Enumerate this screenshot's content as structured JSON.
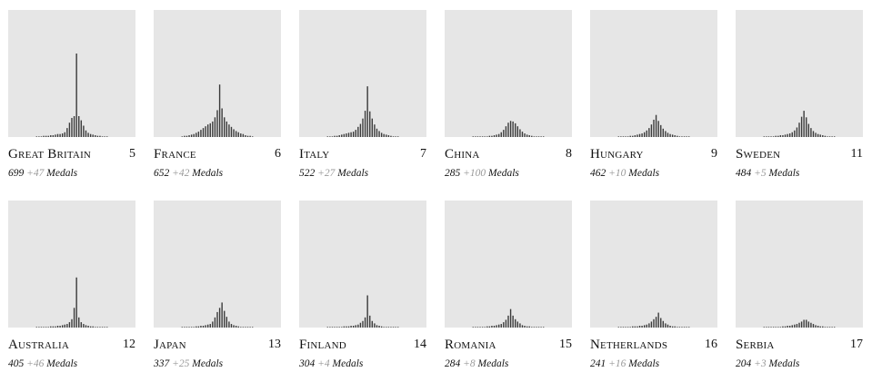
{
  "chart_data": [
    {
      "type": "bar",
      "country": "Great Britain",
      "rank": "5",
      "medals": "699",
      "extra": "+47",
      "medals_label": "Medals",
      "values": [
        1,
        1,
        1,
        2,
        2,
        2,
        3,
        3,
        4,
        5,
        5,
        6,
        8,
        15,
        24,
        32,
        35,
        140,
        35,
        28,
        19,
        11,
        7,
        5,
        4,
        3,
        2,
        2,
        1,
        1,
        1
      ]
    },
    {
      "type": "bar",
      "country": "France",
      "rank": "6",
      "medals": "652",
      "extra": "+42",
      "medals_label": "Medals",
      "values": [
        1,
        2,
        2,
        3,
        4,
        5,
        7,
        9,
        12,
        15,
        18,
        21,
        23,
        26,
        33,
        45,
        88,
        48,
        33,
        26,
        21,
        17,
        13,
        10,
        8,
        6,
        5,
        3,
        2,
        2,
        1
      ]
    },
    {
      "type": "bar",
      "country": "Italy",
      "rank": "7",
      "medals": "522",
      "extra": "+27",
      "medals_label": "Medals",
      "values": [
        1,
        1,
        1,
        2,
        2,
        3,
        4,
        5,
        6,
        7,
        8,
        9,
        12,
        17,
        22,
        31,
        44,
        85,
        43,
        31,
        21,
        14,
        10,
        7,
        5,
        4,
        3,
        2,
        1,
        1,
        1
      ]
    },
    {
      "type": "bar",
      "country": "China",
      "rank": "8",
      "medals": "285",
      "extra": "+100",
      "medals_label": "Medals",
      "values": [
        1,
        1,
        1,
        1,
        1,
        1,
        1,
        2,
        2,
        3,
        4,
        5,
        8,
        12,
        18,
        24,
        27,
        26,
        23,
        18,
        13,
        9,
        6,
        4,
        3,
        2,
        1,
        1,
        1,
        1,
        1
      ]
    },
    {
      "type": "bar",
      "country": "Hungary",
      "rank": "9",
      "medals": "462",
      "extra": "+10",
      "medals_label": "Medals",
      "values": [
        1,
        1,
        1,
        1,
        1,
        2,
        2,
        3,
        4,
        5,
        6,
        8,
        11,
        15,
        21,
        29,
        37,
        27,
        20,
        14,
        10,
        7,
        5,
        4,
        3,
        2,
        1,
        1,
        1,
        1,
        1
      ]
    },
    {
      "type": "bar",
      "country": "Sweden",
      "rank": "11",
      "medals": "484",
      "extra": "+5",
      "medals_label": "Medals",
      "values": [
        1,
        1,
        1,
        1,
        1,
        2,
        2,
        3,
        3,
        4,
        5,
        6,
        8,
        11,
        16,
        24,
        34,
        44,
        33,
        22,
        15,
        10,
        7,
        5,
        4,
        3,
        2,
        1,
        1,
        1,
        1
      ]
    },
    {
      "type": "bar",
      "country": "Australia",
      "rank": "12",
      "medals": "405",
      "extra": "+46",
      "medals_label": "Medals",
      "values": [
        1,
        1,
        1,
        1,
        1,
        1,
        2,
        2,
        2,
        3,
        3,
        4,
        5,
        6,
        9,
        14,
        33,
        84,
        17,
        9,
        6,
        4,
        3,
        2,
        2,
        1,
        1,
        1,
        1,
        1,
        1
      ]
    },
    {
      "type": "bar",
      "country": "Japan",
      "rank": "13",
      "medals": "337",
      "extra": "+25",
      "medals_label": "Medals",
      "values": [
        1,
        1,
        1,
        1,
        1,
        1,
        2,
        2,
        3,
        3,
        4,
        5,
        6,
        10,
        17,
        26,
        33,
        42,
        28,
        18,
        10,
        6,
        4,
        3,
        2,
        1,
        1,
        1,
        1,
        1,
        1
      ]
    },
    {
      "type": "bar",
      "country": "Finland",
      "rank": "14",
      "medals": "304",
      "extra": "+4",
      "medals_label": "Medals",
      "values": [
        1,
        1,
        1,
        1,
        1,
        1,
        1,
        2,
        2,
        2,
        3,
        3,
        4,
        5,
        8,
        11,
        17,
        54,
        20,
        11,
        7,
        4,
        3,
        2,
        1,
        1,
        1,
        1,
        1,
        1,
        1
      ]
    },
    {
      "type": "bar",
      "country": "Romania",
      "rank": "15",
      "medals": "284",
      "extra": "+8",
      "medals_label": "Medals",
      "values": [
        1,
        1,
        1,
        1,
        1,
        1,
        2,
        2,
        3,
        3,
        4,
        5,
        6,
        9,
        13,
        20,
        31,
        20,
        14,
        10,
        7,
        4,
        3,
        2,
        2,
        1,
        1,
        1,
        1,
        1,
        1
      ]
    },
    {
      "type": "bar",
      "country": "Netherlands",
      "rank": "16",
      "medals": "241",
      "extra": "+16",
      "medals_label": "Medals",
      "values": [
        1,
        1,
        1,
        1,
        1,
        1,
        2,
        2,
        2,
        3,
        3,
        4,
        5,
        7,
        10,
        14,
        18,
        25,
        16,
        11,
        7,
        5,
        3,
        2,
        2,
        1,
        1,
        1,
        1,
        1,
        1
      ]
    },
    {
      "type": "bar",
      "country": "Serbia",
      "rank": "17",
      "medals": "204",
      "extra": "+3",
      "medals_label": "Medals",
      "values": [
        1,
        1,
        1,
        1,
        1,
        1,
        1,
        1,
        2,
        2,
        3,
        3,
        4,
        5,
        6,
        8,
        10,
        13,
        13,
        10,
        8,
        6,
        4,
        3,
        2,
        2,
        1,
        1,
        1,
        1,
        1
      ]
    }
  ]
}
